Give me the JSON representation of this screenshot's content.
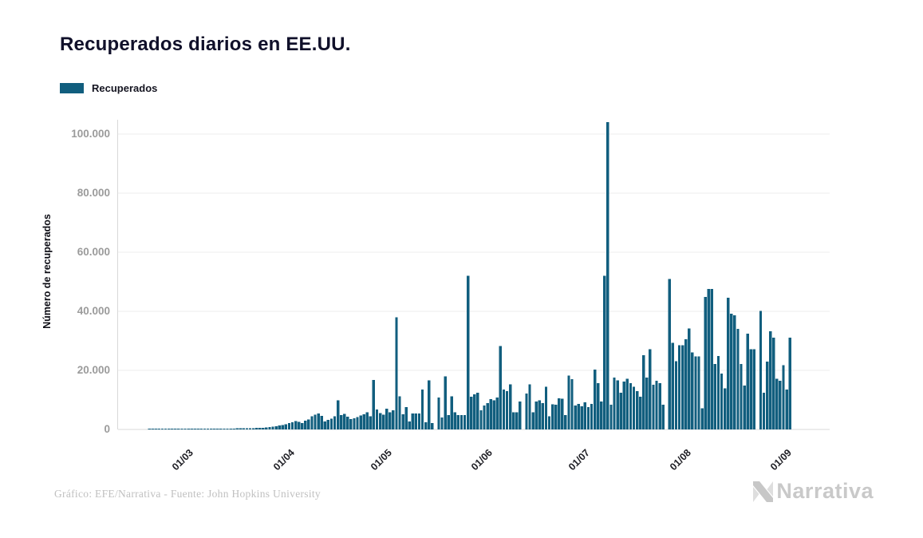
{
  "title": "Recuperados diarios en EE.UU.",
  "legend": {
    "label": "Recuperados",
    "color": "#115e7e"
  },
  "y_axis": {
    "title": "Número de recuperados",
    "ticks": [
      "100.000",
      "80.000",
      "60.000",
      "40.000",
      "20.000",
      "0"
    ],
    "tick_values": [
      100000,
      80000,
      60000,
      40000,
      20000,
      0
    ]
  },
  "x_axis": {
    "ticks": [
      "01/03",
      "01/04",
      "01/05",
      "01/06",
      "01/07",
      "01/08",
      "01/09"
    ]
  },
  "footer": {
    "credit": "Gráfico: EFE/Narrativa - Fuente: John Hopkins University"
  },
  "logo": {
    "text": "Narrativa"
  },
  "colors": {
    "bar": "#115e7e",
    "gridline": "#ededed",
    "axis_line": "#d9d9d9",
    "y_label": "#9b9b9b",
    "x_label": "#1e1e24",
    "title": "#10102a",
    "footer": "#c0c0c0",
    "logo": "#c9c9c9"
  },
  "chart_data": {
    "type": "bar",
    "series_name": "Recuperados",
    "title": "Recuperados diarios en EE.UU.",
    "xlabel": "",
    "ylabel": "Número de recuperados",
    "ylim": [
      0,
      105000
    ],
    "y_tick_interval": 20000,
    "grid": "horizontal",
    "legend_position": "top-left",
    "start_date": "17/02/2020",
    "end_date": "01/09/2020",
    "x_tick_labels": [
      "01/03",
      "01/04",
      "01/05",
      "01/06",
      "01/07",
      "01/08",
      "01/09"
    ],
    "x_tick_day_offsets": [
      13,
      44,
      74,
      105,
      135,
      166,
      197
    ],
    "max_point": {
      "date": "07/07/2020",
      "value": 104000
    },
    "values": [
      120,
      150,
      140,
      160,
      180,
      170,
      190,
      200,
      210,
      200,
      220,
      230,
      250,
      200,
      220,
      240,
      230,
      250,
      260,
      280,
      270,
      290,
      300,
      310,
      300,
      320,
      330,
      340,
      360,
      380,
      400,
      420,
      450,
      480,
      520,
      600,
      700,
      800,
      900,
      1100,
      1300,
      1500,
      1800,
      2100,
      2400,
      2800,
      2600,
      2200,
      3000,
      3400,
      4400,
      5000,
      5400,
      4600,
      2700,
      3300,
      3600,
      4500,
      9800,
      4900,
      5300,
      4300,
      3500,
      3800,
      4200,
      4700,
      5200,
      5800,
      4500,
      16800,
      6800,
      5500,
      5000,
      7000,
      5800,
      6500,
      38000,
      11200,
      5100,
      7600,
      2700,
      5400,
      5400,
      5400,
      13500,
      2500,
      16600,
      2200,
      0,
      10800,
      4000,
      18000,
      4900,
      11200,
      5800,
      4900,
      4900,
      4900,
      52000,
      11100,
      11900,
      12500,
      6500,
      8100,
      8900,
      10300,
      9800,
      10800,
      28200,
      13500,
      13000,
      15300,
      5800,
      5800,
      9500,
      0,
      12200,
      15300,
      5800,
      9500,
      9800,
      8900,
      14400,
      4400,
      8500,
      8400,
      10600,
      10400,
      4900,
      18200,
      17000,
      8100,
      8700,
      7900,
      9200,
      7600,
      8700,
      20300,
      15700,
      9500,
      52000,
      104000,
      8400,
      17600,
      16600,
      12500,
      16200,
      17100,
      15700,
      14400,
      13000,
      11100,
      25200,
      17600,
      27100,
      15200,
      16500,
      15700,
      8400,
      0,
      50900,
      29300,
      23100,
      28500,
      28500,
      30600,
      34200,
      26100,
      24700,
      24700,
      7100,
      44800,
      47600,
      47600,
      22200,
      24900,
      18900,
      13900,
      44600,
      39200,
      38600,
      34000,
      22200,
      14900,
      32500,
      27100,
      27100,
      0,
      40100,
      12500,
      23000,
      33300,
      31100,
      17100,
      16500,
      21700,
      13500,
      31100
    ]
  }
}
